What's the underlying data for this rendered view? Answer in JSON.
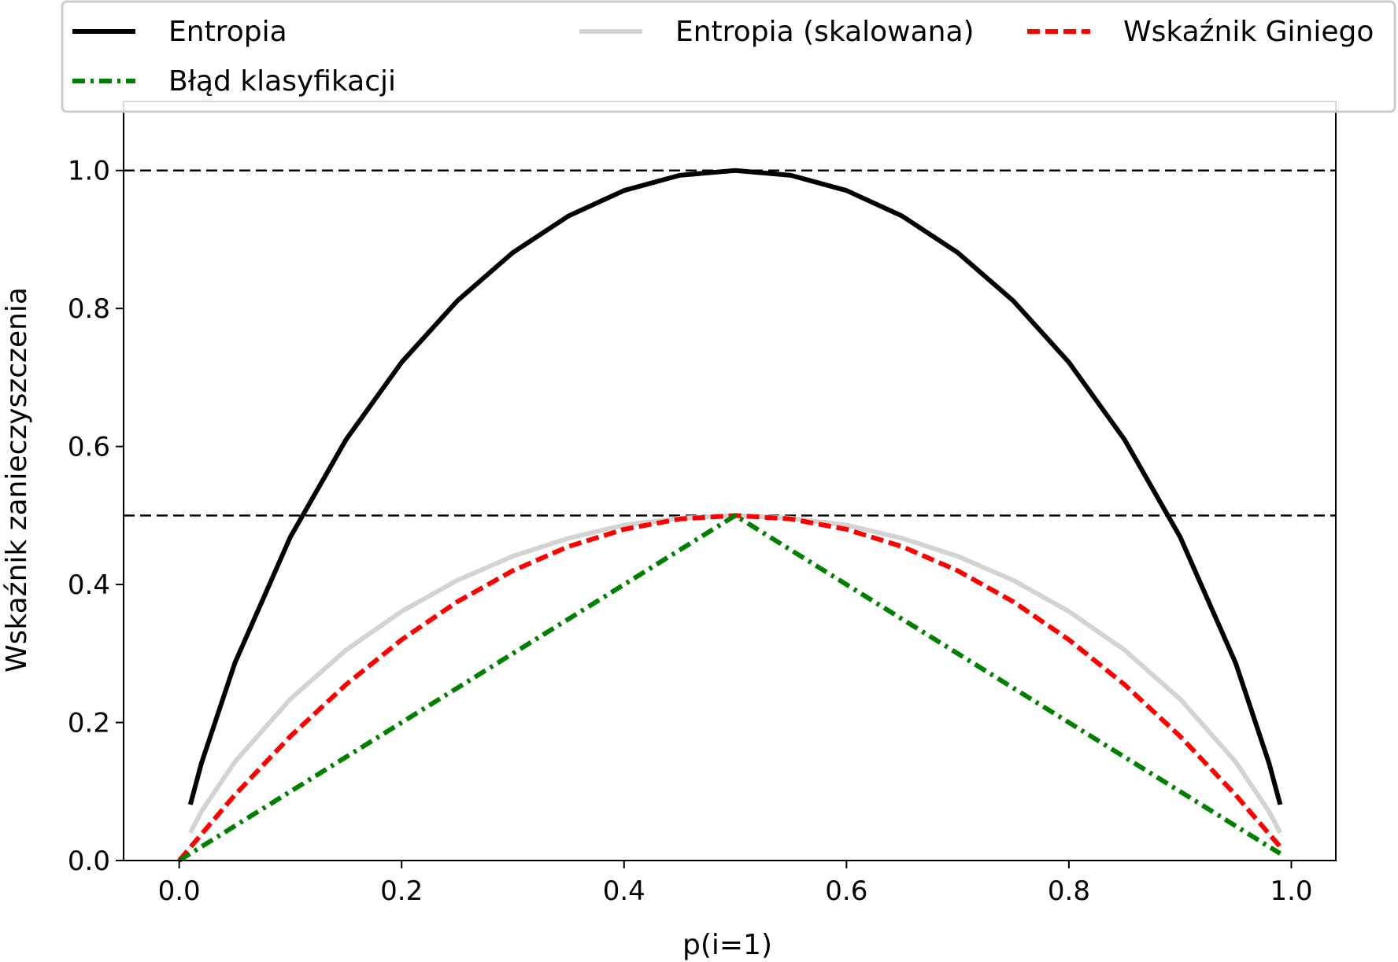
{
  "chart_data": {
    "type": "line",
    "title": "",
    "xlabel": "p(i=1)",
    "ylabel": "Wskaźnik zanieczyszczenia",
    "xlim": [
      -0.05,
      1.04
    ],
    "ylim": [
      0.0,
      1.1
    ],
    "x_ticks": [
      "0.0",
      "0.2",
      "0.4",
      "0.6",
      "0.8",
      "1.0"
    ],
    "y_ticks": [
      "0.0",
      "0.2",
      "0.4",
      "0.6",
      "0.8",
      "1.0"
    ],
    "grid": false,
    "legend_position": "top, spanning above plot (3 columns)",
    "reference_lines": [
      {
        "y": 1.0,
        "style": "dashed",
        "color": "#000000"
      },
      {
        "y": 0.5,
        "style": "dashed",
        "color": "#000000"
      }
    ],
    "series": [
      {
        "name": "Entropia",
        "color": "#000000",
        "dash": "solid",
        "x": [
          0.01,
          0.02,
          0.05,
          0.1,
          0.15,
          0.2,
          0.25,
          0.3,
          0.35,
          0.4,
          0.45,
          0.5,
          0.55,
          0.6,
          0.65,
          0.7,
          0.75,
          0.8,
          0.85,
          0.9,
          0.95,
          0.98,
          0.99
        ],
        "values": [
          0.081,
          0.141,
          0.286,
          0.469,
          0.61,
          0.722,
          0.811,
          0.881,
          0.934,
          0.971,
          0.993,
          1.0,
          0.993,
          0.971,
          0.934,
          0.881,
          0.811,
          0.722,
          0.61,
          0.469,
          0.286,
          0.141,
          0.081
        ]
      },
      {
        "name": "Entropia (skalowana)",
        "color": "#d3d3d3",
        "dash": "solid",
        "x": [
          0.01,
          0.02,
          0.05,
          0.1,
          0.15,
          0.2,
          0.25,
          0.3,
          0.35,
          0.4,
          0.45,
          0.5,
          0.55,
          0.6,
          0.65,
          0.7,
          0.75,
          0.8,
          0.85,
          0.9,
          0.95,
          0.98,
          0.99
        ],
        "values": [
          0.04,
          0.071,
          0.143,
          0.234,
          0.305,
          0.361,
          0.406,
          0.441,
          0.467,
          0.486,
          0.496,
          0.5,
          0.496,
          0.486,
          0.467,
          0.441,
          0.406,
          0.361,
          0.305,
          0.234,
          0.143,
          0.071,
          0.04
        ]
      },
      {
        "name": "Wskaźnik Giniego",
        "color": "#ff0000",
        "dash": "dashed",
        "x": [
          0.0,
          0.05,
          0.1,
          0.15,
          0.2,
          0.25,
          0.3,
          0.35,
          0.4,
          0.45,
          0.5,
          0.55,
          0.6,
          0.65,
          0.7,
          0.75,
          0.8,
          0.85,
          0.9,
          0.95,
          0.99
        ],
        "values": [
          0.0,
          0.095,
          0.18,
          0.255,
          0.32,
          0.375,
          0.42,
          0.455,
          0.48,
          0.495,
          0.5,
          0.495,
          0.48,
          0.455,
          0.42,
          0.375,
          0.32,
          0.255,
          0.18,
          0.095,
          0.0198
        ]
      },
      {
        "name": "Błąd klasyfikacji",
        "color": "#008000",
        "dash": "dashdot",
        "x": [
          0.0,
          0.5,
          0.99
        ],
        "values": [
          0.0,
          0.5,
          0.01
        ]
      }
    ]
  }
}
